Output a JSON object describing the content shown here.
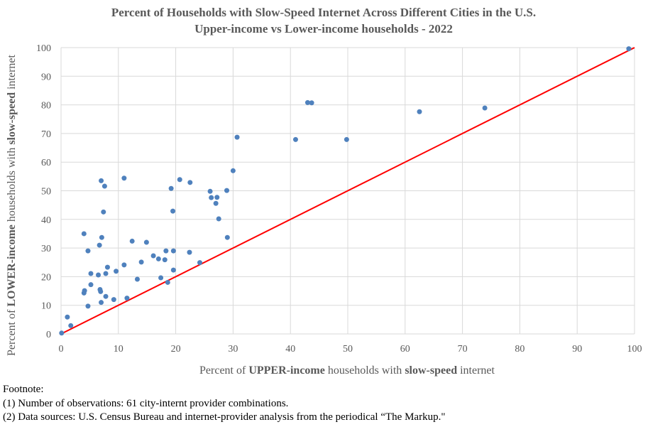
{
  "chart_data": {
    "type": "scatter",
    "title": "Percent of Households with Slow-Speed Internet Across Different Cities in the U.S.",
    "subtitle": "Upper-income vs Lower-income households - 2022",
    "xlabel_parts": [
      {
        "text": "Percent of ",
        "bold": false
      },
      {
        "text": "UPPER-income",
        "bold": true
      },
      {
        "text": " households with ",
        "bold": false
      },
      {
        "text": "slow-speed",
        "bold": true
      },
      {
        "text": " internet",
        "bold": false
      }
    ],
    "ylabel_parts": [
      {
        "text": "Percent of ",
        "bold": false
      },
      {
        "text": "LOWER-income",
        "bold": true
      },
      {
        "text": " households with ",
        "bold": false
      },
      {
        "text": "slow-speed",
        "bold": true
      },
      {
        "text": " internet",
        "bold": false
      }
    ],
    "xlim": [
      0,
      100
    ],
    "ylim": [
      0,
      100
    ],
    "xticks": [
      0,
      10,
      20,
      30,
      40,
      50,
      60,
      70,
      80,
      90,
      100
    ],
    "yticks": [
      0,
      10,
      20,
      30,
      40,
      50,
      60,
      70,
      80,
      90,
      100
    ],
    "grid": true,
    "marker_color": "#4F81BD",
    "line_color": "#FF0000",
    "reference_line": {
      "x": [
        0,
        100
      ],
      "y": [
        0,
        100
      ]
    },
    "points": [
      [
        0.1,
        0.3
      ],
      [
        1.1,
        5.9
      ],
      [
        1.7,
        2.9
      ],
      [
        4.0,
        14.3
      ],
      [
        4.1,
        15.1
      ],
      [
        4.0,
        35.0
      ],
      [
        4.7,
        9.7
      ],
      [
        4.7,
        29.0
      ],
      [
        5.2,
        21.1
      ],
      [
        5.2,
        17.2
      ],
      [
        6.5,
        20.6
      ],
      [
        6.7,
        31.0
      ],
      [
        6.8,
        15.5
      ],
      [
        6.9,
        14.8
      ],
      [
        7.0,
        53.5
      ],
      [
        7.0,
        11.0
      ],
      [
        7.1,
        33.7
      ],
      [
        7.4,
        42.6
      ],
      [
        7.6,
        51.6
      ],
      [
        7.8,
        13.1
      ],
      [
        7.8,
        21.1
      ],
      [
        8.1,
        23.3
      ],
      [
        9.2,
        12.0
      ],
      [
        9.6,
        21.9
      ],
      [
        11.0,
        54.4
      ],
      [
        11.0,
        24.1
      ],
      [
        11.5,
        12.5
      ],
      [
        12.4,
        32.4
      ],
      [
        13.3,
        19.1
      ],
      [
        14.0,
        25.1
      ],
      [
        14.9,
        32.0
      ],
      [
        16.1,
        27.3
      ],
      [
        17.0,
        26.2
      ],
      [
        17.4,
        19.6
      ],
      [
        18.1,
        25.9
      ],
      [
        18.3,
        29.0
      ],
      [
        18.6,
        18.0
      ],
      [
        19.2,
        50.8
      ],
      [
        19.5,
        42.9
      ],
      [
        19.6,
        29.0
      ],
      [
        19.6,
        22.3
      ],
      [
        20.7,
        53.9
      ],
      [
        22.4,
        28.5
      ],
      [
        22.5,
        52.9
      ],
      [
        24.2,
        24.9
      ],
      [
        26.0,
        49.8
      ],
      [
        26.2,
        47.6
      ],
      [
        27.0,
        45.6
      ],
      [
        27.2,
        47.7
      ],
      [
        27.5,
        40.2
      ],
      [
        28.9,
        50.1
      ],
      [
        29.0,
        33.7
      ],
      [
        30.0,
        57.0
      ],
      [
        30.7,
        68.7
      ],
      [
        40.9,
        67.9
      ],
      [
        43.0,
        80.8
      ],
      [
        43.7,
        80.7
      ],
      [
        49.8,
        67.9
      ],
      [
        62.5,
        77.6
      ],
      [
        73.9,
        78.9
      ],
      [
        99.0,
        99.6
      ]
    ]
  },
  "footnote": {
    "heading": "Footnote:",
    "line1": "(1) Number of observations: 61 city-internt provider combinations.",
    "line2": "(2) Data sources: U.S. Census Bureau and internet-provider analysis from the periodical “The Markup.\""
  }
}
